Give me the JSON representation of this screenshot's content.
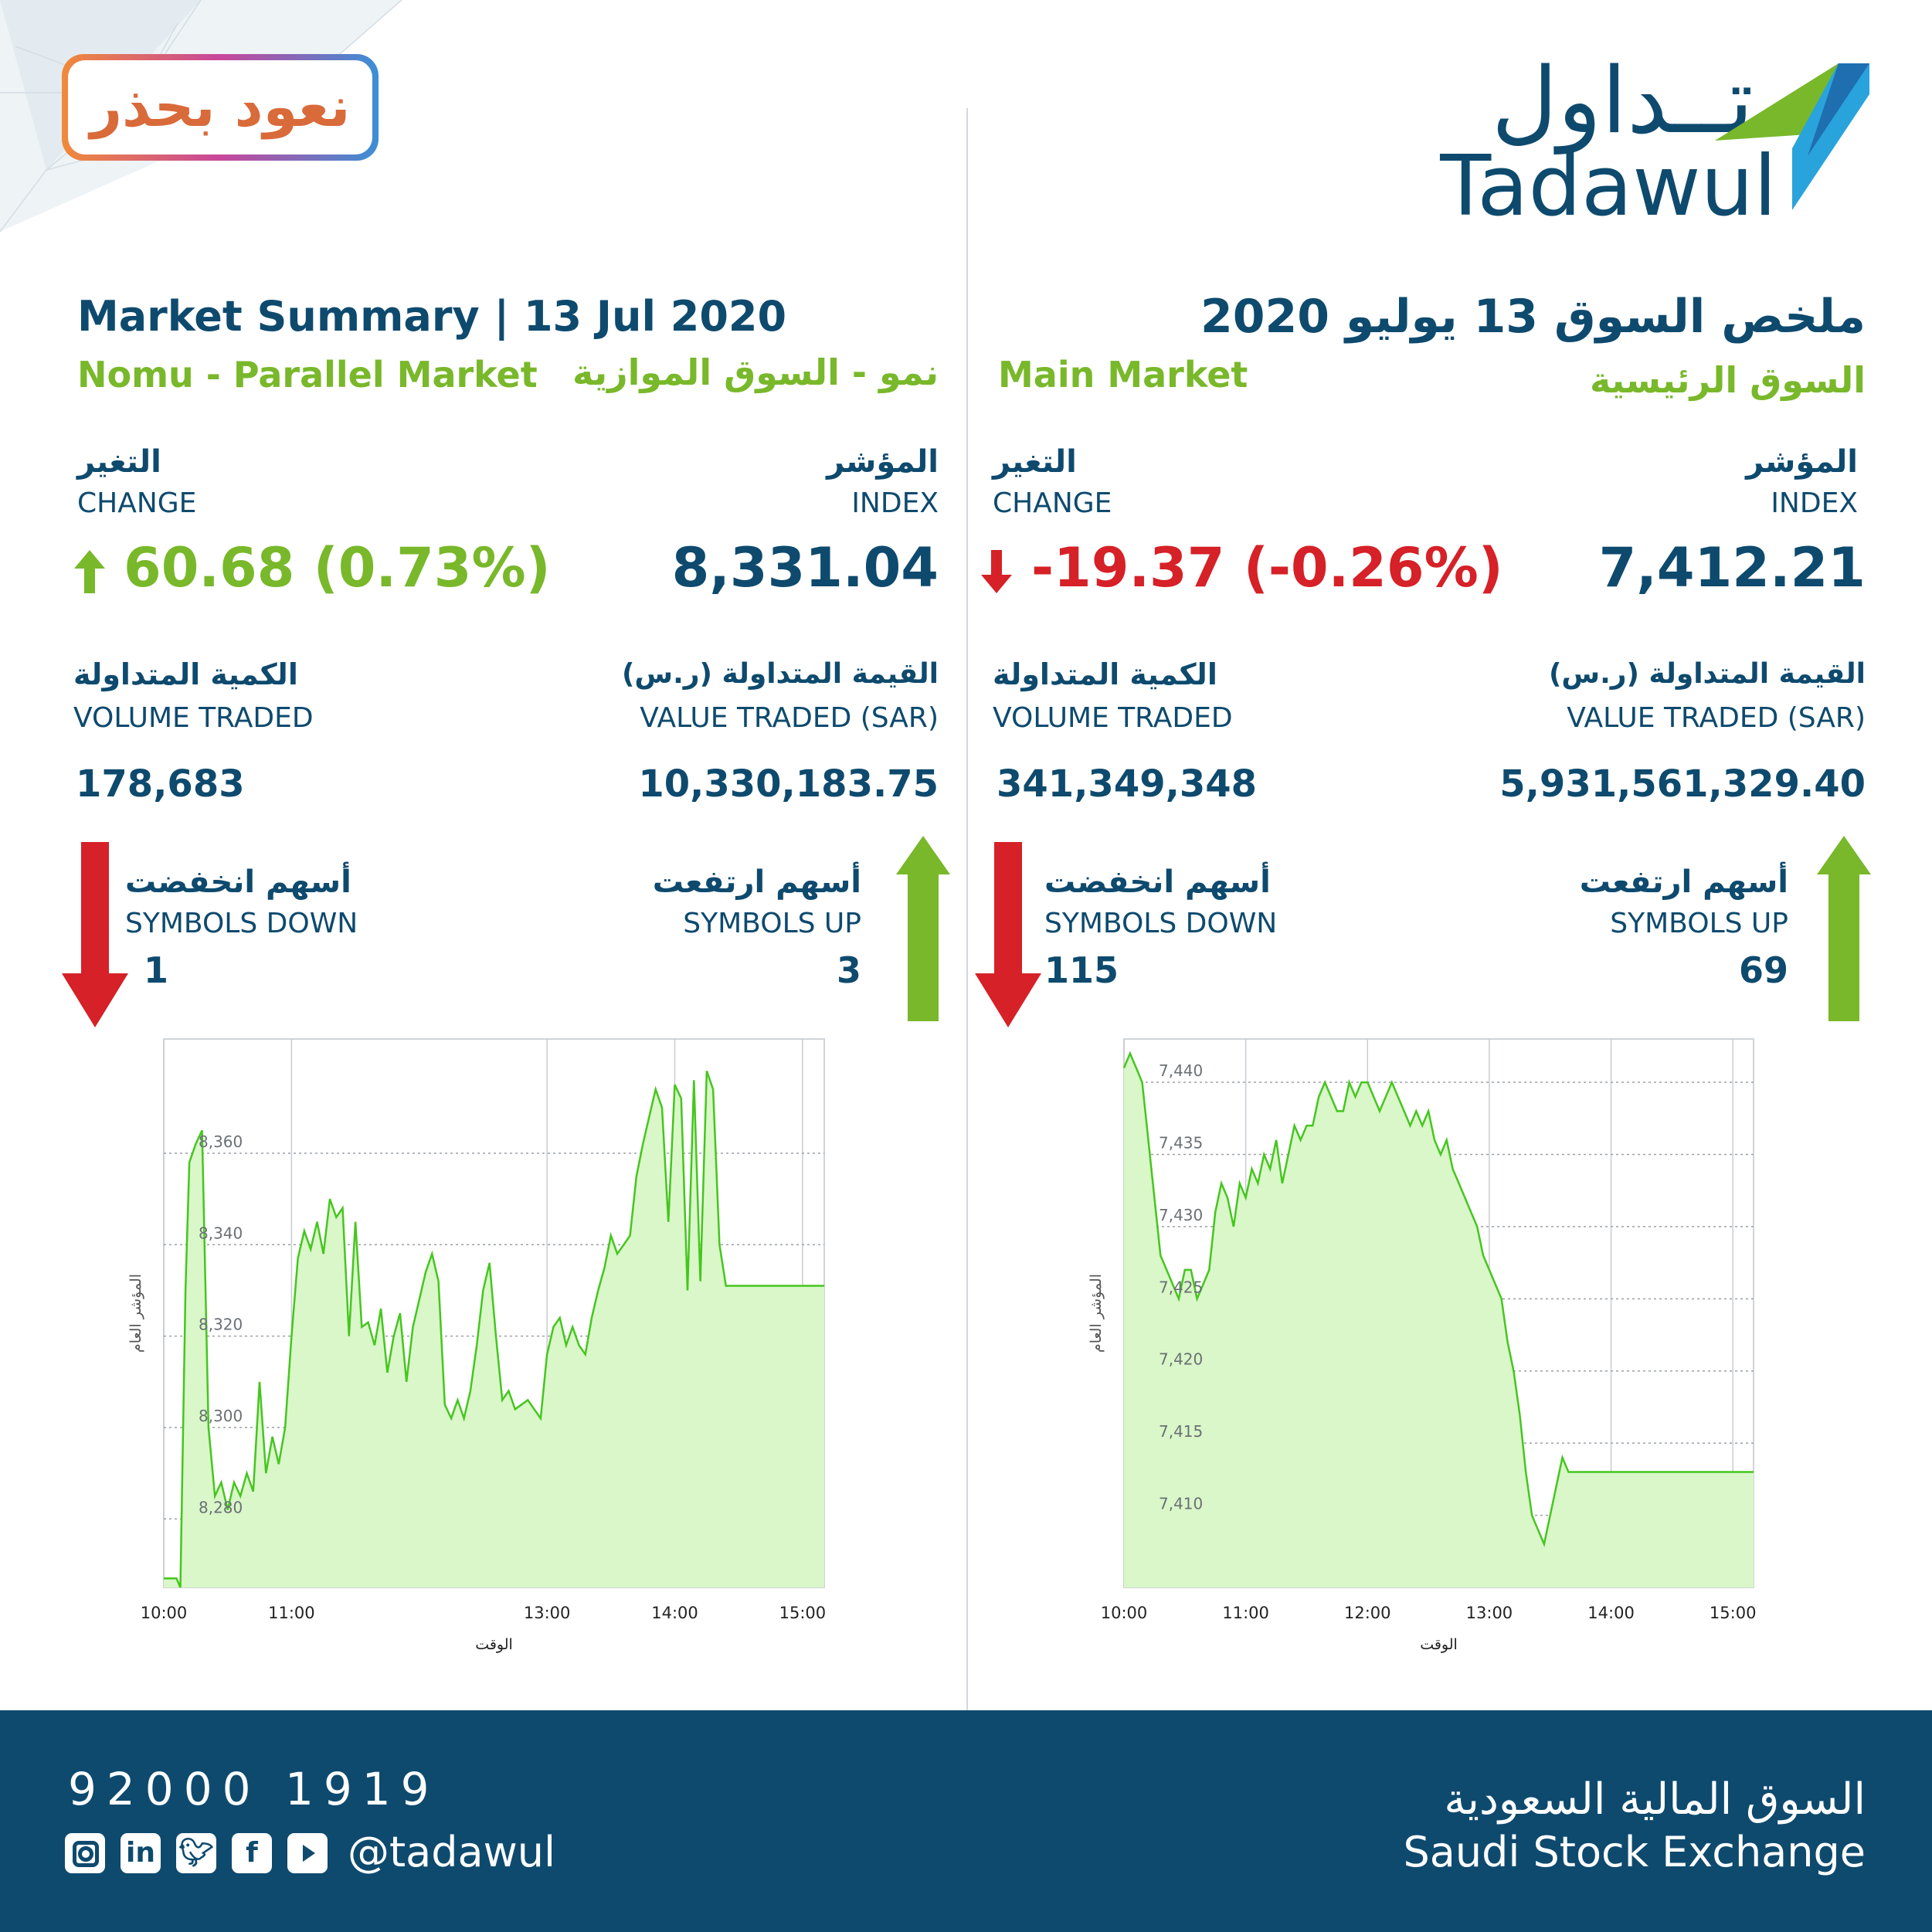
{
  "brand": {
    "arabic": "تــداول",
    "latin": "Tadawul",
    "campaign": "نعود بحذر"
  },
  "colors": {
    "navy": "#0e4a6e",
    "green": "#78b82a",
    "red": "#d52127",
    "light_blue": "#29a3dc",
    "chart_fill": "#d9f7c9",
    "chart_line": "#45c61e"
  },
  "parallel": {
    "header_en": "Market Summary | 13 Jul 2020",
    "market_en": "Nomu - Parallel Market",
    "market_ar": "نمو - السوق الموازية",
    "index_ar": "المؤشر",
    "index_en": "INDEX",
    "index_value": "8,331.04",
    "change_ar": "التغير",
    "change_en": "CHANGE",
    "change_value": "60.68 (0.73%)",
    "value_ar": "القيمة المتداولة (ر.س)",
    "value_en": "VALUE TRADED (SAR)",
    "value_value": "10,330,183.75",
    "volume_ar": "الكمية المتداولة",
    "volume_en": "VOLUME TRADED",
    "volume_value": "178,683",
    "up_ar": "أسهم ارتفعت",
    "up_en": "SYMBOLS UP",
    "up_value": "3",
    "down_ar": "أسهم انخفضت",
    "down_en": "SYMBOLS DOWN",
    "down_value": "1"
  },
  "main": {
    "header_ar": "ملخص السوق 13 يوليو 2020",
    "market_en": "Main Market",
    "market_ar": "السوق الرئيسية",
    "index_ar": "المؤشر",
    "index_en": "INDEX",
    "index_value": "7,412.21",
    "change_ar": "التغير",
    "change_en": "CHANGE",
    "change_value": "-19.37 (-0.26%)",
    "value_ar": "القيمة المتداولة (ر.س)",
    "value_en": "VALUE TRADED (SAR)",
    "value_value": "5,931,561,329.40",
    "volume_ar": "الكمية المتداولة",
    "volume_en": "VOLUME TRADED",
    "volume_value": "341,349,348",
    "up_ar": "أسهم ارتفعت",
    "up_en": "SYMBOLS UP",
    "up_value": "69",
    "down_ar": "أسهم انخفضت",
    "down_en": "SYMBOLS DOWN",
    "down_value": "115"
  },
  "footer": {
    "phone": "92000 1919",
    "handle": "@tadawul",
    "name_ar": "السوق المالية السعودية",
    "name_en": "Saudi Stock Exchange",
    "icons": [
      "instagram-icon",
      "linkedin-icon",
      "twitter-icon",
      "facebook-icon",
      "youtube-icon"
    ]
  },
  "chart_data": [
    {
      "type": "area",
      "ylabel": "المؤشر العام",
      "xlabel": "الوقت",
      "ylim": [
        8265,
        8385
      ],
      "xlim": [
        10.0,
        15.17
      ],
      "yticks": [
        8280,
        8300,
        8320,
        8340,
        8360
      ],
      "ytick_labels": [
        "8,280",
        "8,300",
        "8,320",
        "8,340",
        "8,360"
      ],
      "xticks": [
        10,
        11,
        13,
        14,
        15
      ],
      "xtick_labels": [
        "10:00",
        "11:00",
        "13:00",
        "14:00",
        "15:00"
      ],
      "grid": true,
      "x": [
        10.0,
        10.1,
        10.13,
        10.17,
        10.2,
        10.25,
        10.3,
        10.35,
        10.4,
        10.45,
        10.5,
        10.55,
        10.6,
        10.65,
        10.7,
        10.75,
        10.8,
        10.85,
        10.9,
        10.95,
        11.0,
        11.05,
        11.1,
        11.15,
        11.2,
        11.25,
        11.3,
        11.35,
        11.4,
        11.45,
        11.5,
        11.55,
        11.6,
        11.65,
        11.7,
        11.75,
        11.8,
        11.85,
        11.9,
        11.95,
        12.0,
        12.05,
        12.1,
        12.15,
        12.2,
        12.25,
        12.3,
        12.35,
        12.4,
        12.45,
        12.5,
        12.55,
        12.6,
        12.65,
        12.7,
        12.75,
        12.8,
        12.85,
        12.9,
        12.95,
        13.0,
        13.05,
        13.1,
        13.15,
        13.2,
        13.25,
        13.3,
        13.35,
        13.4,
        13.45,
        13.5,
        13.55,
        13.6,
        13.65,
        13.7,
        13.75,
        13.8,
        13.85,
        13.9,
        13.95,
        14.0,
        14.05,
        14.1,
        14.15,
        14.2,
        14.25,
        14.3,
        14.35,
        14.4,
        14.45,
        14.5,
        14.55,
        14.6,
        14.65,
        14.7,
        14.75,
        14.8,
        14.85,
        14.9,
        14.95,
        15.0,
        15.05,
        15.1,
        15.17
      ],
      "y": [
        8267,
        8267,
        8265,
        8330,
        8358,
        8362,
        8365,
        8300,
        8285,
        8288,
        8282,
        8288,
        8285,
        8290,
        8286,
        8310,
        8290,
        8298,
        8292,
        8300,
        8320,
        8337,
        8343,
        8339,
        8345,
        8338,
        8350,
        8346,
        8348,
        8320,
        8345,
        8322,
        8323,
        8318,
        8326,
        8312,
        8320,
        8325,
        8310,
        8322,
        8328,
        8334,
        8338,
        8332,
        8305,
        8302,
        8306,
        8302,
        8308,
        8318,
        8330,
        8336,
        8320,
        8306,
        8308,
        8304,
        8305,
        8306,
        8304,
        8302,
        8316,
        8322,
        8324,
        8318,
        8322,
        8318,
        8316,
        8324,
        8330,
        8335,
        8342,
        8338,
        8340,
        8342,
        8355,
        8362,
        8368,
        8374,
        8370,
        8345,
        8375,
        8372,
        8330,
        8376,
        8332,
        8378,
        8374,
        8340,
        8331,
        8331,
        8331,
        8331,
        8331,
        8331,
        8331,
        8331,
        8331,
        8331,
        8331,
        8331,
        8331,
        8331,
        8331,
        8331
      ]
    },
    {
      "type": "area",
      "ylabel": "المؤشر العام",
      "xlabel": "الوقت",
      "ylim": [
        7405,
        7443
      ],
      "xlim": [
        10.0,
        15.17
      ],
      "yticks": [
        7410,
        7415,
        7420,
        7425,
        7430,
        7435,
        7440
      ],
      "ytick_labels": [
        "7,410",
        "7,415",
        "7,420",
        "7,425",
        "7,430",
        "7,435",
        "7,440"
      ],
      "xticks": [
        10,
        11,
        12,
        13,
        14,
        15
      ],
      "xtick_labels": [
        "10:00",
        "11:00",
        "12:00",
        "13:00",
        "14:00",
        "15:00"
      ],
      "grid": true,
      "x": [
        10.0,
        10.05,
        10.1,
        10.15,
        10.2,
        10.25,
        10.3,
        10.35,
        10.4,
        10.45,
        10.5,
        10.55,
        10.6,
        10.65,
        10.7,
        10.75,
        10.8,
        10.85,
        10.9,
        10.95,
        11.0,
        11.05,
        11.1,
        11.15,
        11.2,
        11.25,
        11.3,
        11.35,
        11.4,
        11.45,
        11.5,
        11.55,
        11.6,
        11.65,
        11.7,
        11.75,
        11.8,
        11.85,
        11.9,
        11.95,
        12.0,
        12.05,
        12.1,
        12.15,
        12.2,
        12.25,
        12.3,
        12.35,
        12.4,
        12.45,
        12.5,
        12.55,
        12.6,
        12.65,
        12.7,
        12.75,
        12.8,
        12.85,
        12.9,
        12.95,
        13.0,
        13.05,
        13.1,
        13.15,
        13.2,
        13.25,
        13.3,
        13.35,
        13.4,
        13.45,
        13.5,
        13.55,
        13.6,
        13.65,
        13.7,
        13.75,
        13.8,
        13.85,
        13.9,
        13.95,
        14.0,
        14.05,
        14.1,
        14.15,
        14.2,
        14.25,
        14.3,
        14.35,
        14.4,
        14.45,
        14.5,
        14.55,
        14.6,
        14.65,
        14.7,
        14.75,
        14.8,
        14.85,
        14.9,
        14.95,
        15.0,
        15.05,
        15.1,
        15.17
      ],
      "y": [
        7441,
        7442,
        7441,
        7440,
        7436,
        7432,
        7428,
        7427,
        7426,
        7425,
        7427,
        7427,
        7425,
        7426,
        7427,
        7431,
        7433,
        7432,
        7430,
        7433,
        7432,
        7434,
        7433,
        7435,
        7434,
        7436,
        7433,
        7435,
        7437,
        7436,
        7437,
        7437,
        7439,
        7440,
        7439,
        7438,
        7438,
        7440,
        7439,
        7440,
        7440,
        7439,
        7438,
        7439,
        7440,
        7439,
        7438,
        7437,
        7438,
        7437,
        7438,
        7436,
        7435,
        7436,
        7434,
        7433,
        7432,
        7431,
        7430,
        7428,
        7427,
        7426,
        7425,
        7422,
        7420,
        7417,
        7413,
        7410,
        7409,
        7408,
        7410,
        7412,
        7414,
        7413,
        7413,
        7413,
        7413,
        7413,
        7413,
        7413,
        7413,
        7413,
        7413,
        7413,
        7413,
        7413,
        7413,
        7413,
        7413,
        7413,
        7413,
        7413,
        7413,
        7413,
        7413,
        7413,
        7413,
        7413,
        7413,
        7413,
        7413,
        7413,
        7413,
        7413
      ]
    }
  ]
}
